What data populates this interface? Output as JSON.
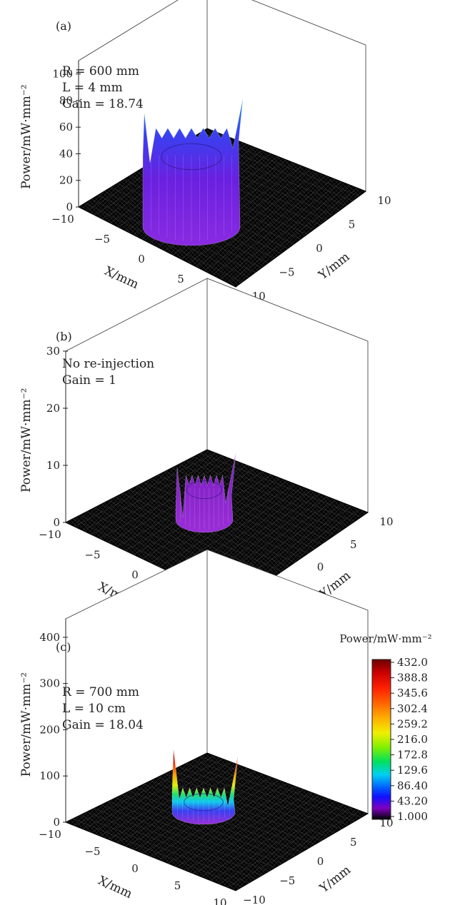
{
  "chart_data": [
    {
      "type": "surface3d",
      "panel_label": "(a)",
      "annotations": [
        "R = 600 mm",
        "L = 4 mm",
        "Gain = 18.74"
      ],
      "zlabel": "Power/mW·mm⁻²",
      "xlabel": "X/mm",
      "ylabel": "Y/mm",
      "xlim": [
        -10,
        10
      ],
      "ylim": [
        -10,
        10
      ],
      "zlim": [
        0,
        110
      ],
      "x_ticks": [
        "−10",
        "−5",
        "0",
        "5",
        "10"
      ],
      "y_ticks": [
        "−10",
        "−5",
        "0",
        "5",
        "10"
      ],
      "z_ticks": [
        "0",
        "20",
        "40",
        "60",
        "80",
        "100"
      ],
      "beam_radius_mm": 5,
      "ring_power_level": 65,
      "peak_power": 110
    },
    {
      "type": "surface3d",
      "panel_label": "(b)",
      "annotations": [
        "No re-injection",
        "Gain = 1"
      ],
      "zlabel": "Power/mW·mm⁻²",
      "xlabel": "X/mm",
      "ylabel": "Y/mm",
      "xlim": [
        -10,
        10
      ],
      "ylim": [
        -10,
        10
      ],
      "zlim": [
        0,
        30
      ],
      "x_ticks": [
        "−10",
        "−5",
        "0",
        "5",
        "10"
      ],
      "y_ticks": [
        "−10",
        "−5",
        "0",
        "5",
        "10"
      ],
      "z_ticks": [
        "0",
        "10",
        "20",
        "30"
      ],
      "beam_radius_mm": 3,
      "ring_power_level": 13,
      "peak_power": 26
    },
    {
      "type": "surface3d",
      "panel_label": "(c)",
      "annotations": [
        "R = 700 mm",
        "L = 10 cm",
        "Gain = 18.04"
      ],
      "zlabel": "Power/mW·mm⁻²",
      "xlabel": "X/mm",
      "ylabel": "Y/mm",
      "xlim": [
        -10,
        10
      ],
      "ylim": [
        -10,
        10
      ],
      "zlim": [
        0,
        440
      ],
      "x_ticks": [
        "−10",
        "−5",
        "0",
        "5",
        "10"
      ],
      "y_ticks": [
        "−10",
        "−5",
        "0",
        "5",
        "10"
      ],
      "z_ticks": [
        "0",
        "100",
        "200",
        "300",
        "400"
      ],
      "beam_radius_mm": 3,
      "ring_power_level": 150,
      "peak_power": 432,
      "colorbar": {
        "title": "Power/mW·mm⁻²",
        "labels": [
          "432.0",
          "388.8",
          "345.6",
          "302.4",
          "259.2",
          "216.0",
          "172.8",
          "129.6",
          "86.40",
          "43.20",
          "1.000"
        ],
        "colors": [
          "#6a0000",
          "#c80000",
          "#ff2000",
          "#ff6a00",
          "#ffb000",
          "#f0f000",
          "#80f000",
          "#00e060",
          "#00d0f0",
          "#0060ff",
          "#1010ff",
          "#8000c0",
          "#000000"
        ]
      }
    }
  ]
}
